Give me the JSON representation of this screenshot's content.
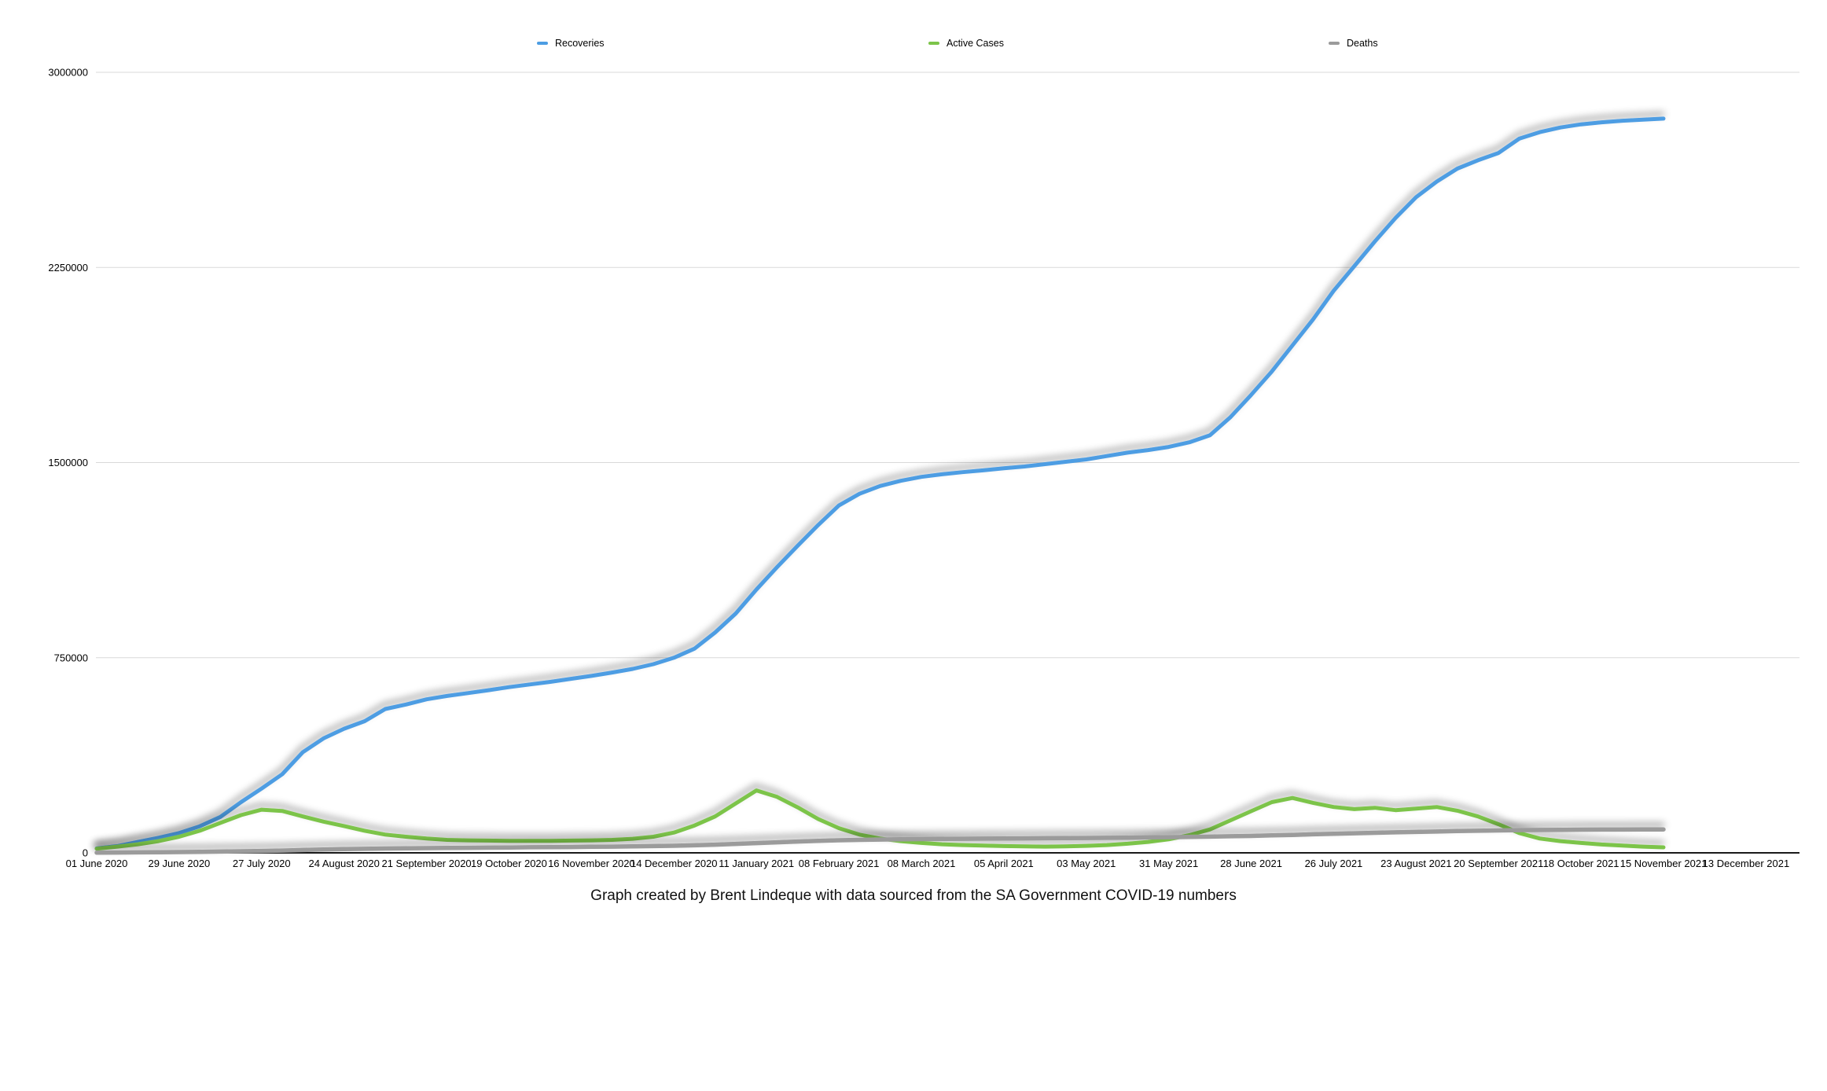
{
  "caption": "Graph created by Brent Lindeque with data sourced from the SA Government COVID-19 numbers",
  "legend": {
    "items": [
      {
        "label": "Recoveries",
        "color": "#4D9DE3"
      },
      {
        "label": "Active Cases",
        "color": "#7CC44A"
      },
      {
        "label": "Deaths",
        "color": "#9B9B9B"
      }
    ]
  },
  "chart_data": {
    "type": "line",
    "title": "",
    "xlabel": "",
    "ylabel": "",
    "ylim": [
      0,
      3000000
    ],
    "grid": "horizontal-only",
    "legend_position": "top",
    "y_ticks": [
      0,
      750000,
      1500000,
      2250000,
      3000000
    ],
    "y_tick_labels": [
      "0",
      "750000",
      "1500000",
      "2250000",
      "3000000"
    ],
    "x_tick_labels": [
      "01 June 2020",
      "29 June 2020",
      "27 July 2020",
      "24 August 2020",
      "21 September 2020",
      "19 October 2020",
      "16 November 2020",
      "14 December 2020",
      "11 January 2021",
      "08 February 2021",
      "08 March 2021",
      "05 April 2021",
      "03 May 2021",
      "31 May 2021",
      "28 June 2021",
      "26 July 2021",
      "23 August 2021",
      "20 September 2021",
      "18 October 2021",
      "15 November 2021",
      "13 December 2021"
    ],
    "x": [
      "2020-06-01",
      "2020-06-08",
      "2020-06-15",
      "2020-06-22",
      "2020-06-29",
      "2020-07-06",
      "2020-07-13",
      "2020-07-20",
      "2020-07-27",
      "2020-08-03",
      "2020-08-10",
      "2020-08-17",
      "2020-08-24",
      "2020-08-31",
      "2020-09-07",
      "2020-09-14",
      "2020-09-21",
      "2020-09-28",
      "2020-10-05",
      "2020-10-12",
      "2020-10-19",
      "2020-10-26",
      "2020-11-02",
      "2020-11-09",
      "2020-11-16",
      "2020-11-23",
      "2020-11-30",
      "2020-12-07",
      "2020-12-14",
      "2020-12-21",
      "2020-12-28",
      "2021-01-04",
      "2021-01-11",
      "2021-01-18",
      "2021-01-25",
      "2021-02-01",
      "2021-02-08",
      "2021-02-15",
      "2021-02-22",
      "2021-03-01",
      "2021-03-08",
      "2021-03-15",
      "2021-03-22",
      "2021-03-29",
      "2021-04-05",
      "2021-04-12",
      "2021-04-19",
      "2021-04-26",
      "2021-05-03",
      "2021-05-10",
      "2021-05-17",
      "2021-05-24",
      "2021-05-31",
      "2021-06-07",
      "2021-06-14",
      "2021-06-21",
      "2021-06-28",
      "2021-07-05",
      "2021-07-12",
      "2021-07-19",
      "2021-07-26",
      "2021-08-02",
      "2021-08-09",
      "2021-08-16",
      "2021-08-23",
      "2021-08-30",
      "2021-09-06",
      "2021-09-13",
      "2021-09-20",
      "2021-09-27",
      "2021-10-04",
      "2021-10-11",
      "2021-10-18",
      "2021-10-25",
      "2021-11-01",
      "2021-11-08",
      "2021-11-15"
    ],
    "series": [
      {
        "name": "Recoveries",
        "color": "#4D9DE3",
        "values": [
          17000,
          26000,
          42000,
          58000,
          76000,
          102000,
          138000,
          195000,
          247000,
          302000,
          387000,
          440000,
          477000,
          506000,
          553000,
          570000,
          590000,
          603000,
          614000,
          625000,
          637000,
          647000,
          657000,
          669000,
          680000,
          693000,
          707000,
          725000,
          750000,
          785000,
          847000,
          920000,
          1012000,
          1098000,
          1180000,
          1260000,
          1335000,
          1380000,
          1410000,
          1430000,
          1445000,
          1455000,
          1463000,
          1470000,
          1478000,
          1485000,
          1494000,
          1503000,
          1512000,
          1525000,
          1538000,
          1548000,
          1560000,
          1578000,
          1605000,
          1675000,
          1760000,
          1850000,
          1950000,
          2050000,
          2160000,
          2255000,
          2350000,
          2440000,
          2520000,
          2580000,
          2630000,
          2662000,
          2690000,
          2745000,
          2770000,
          2788000,
          2800000,
          2808000,
          2814000,
          2818000,
          2822000
        ]
      },
      {
        "name": "Active Cases",
        "color": "#7CC44A",
        "values": [
          16000,
          24000,
          33000,
          45000,
          62000,
          85000,
          115000,
          145000,
          166000,
          161000,
          140000,
          120000,
          103000,
          85000,
          70000,
          62000,
          55000,
          50000,
          48000,
          47000,
          46000,
          46000,
          46000,
          47000,
          48000,
          50000,
          54000,
          62000,
          78000,
          105000,
          140000,
          190000,
          240000,
          215000,
          175000,
          130000,
          95000,
          70000,
          55000,
          45000,
          38000,
          33000,
          30000,
          28000,
          26000,
          25000,
          24000,
          25000,
          27000,
          30000,
          35000,
          42000,
          52000,
          68000,
          90000,
          125000,
          160000,
          195000,
          211000,
          192000,
          176000,
          168000,
          173000,
          164000,
          170000,
          176000,
          162000,
          140000,
          110000,
          76000,
          55000,
          45000,
          38000,
          32000,
          28000,
          24000,
          21000
        ]
      },
      {
        "name": "Deaths",
        "color": "#9B9B9B",
        "values": [
          700,
          1200,
          1700,
          2300,
          2900,
          3700,
          4700,
          5900,
          7200,
          8900,
          11000,
          12800,
          14100,
          15400,
          16700,
          17400,
          18100,
          18800,
          19400,
          20000,
          20600,
          21300,
          21900,
          22500,
          23200,
          24000,
          24900,
          26000,
          27300,
          28900,
          31400,
          34300,
          37400,
          40600,
          43600,
          46200,
          48300,
          49900,
          51000,
          52000,
          52800,
          53500,
          54200,
          54700,
          55200,
          55600,
          56100,
          56600,
          57100,
          57600,
          58200,
          59100,
          60000,
          61000,
          62200,
          63600,
          65100,
          67000,
          69000,
          71200,
          73200,
          75100,
          77000,
          78800,
          80500,
          82000,
          83600,
          85000,
          86200,
          87200,
          88000,
          88600,
          89000,
          89300,
          89500,
          89700,
          89900
        ]
      }
    ]
  }
}
